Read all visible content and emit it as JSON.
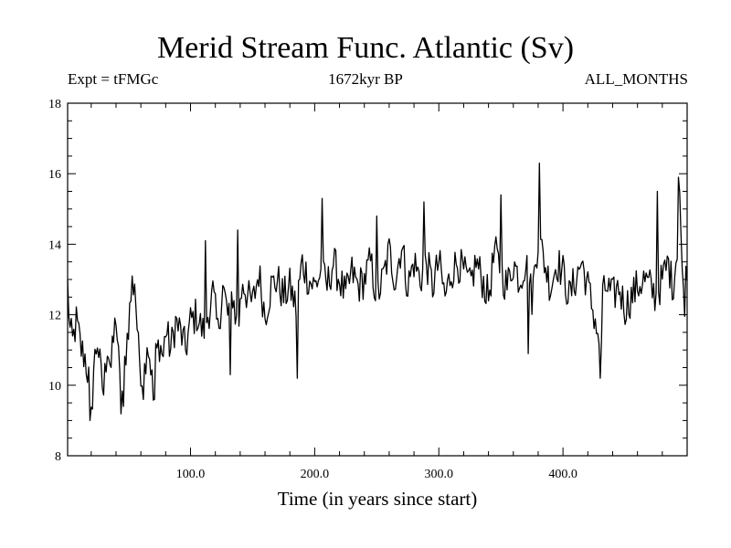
{
  "chart_data": {
    "type": "line",
    "title": "Merid Stream Func. Atlantic (Sv)",
    "subtitle_left": "Expt = tFMGc",
    "subtitle_center": "1672kyr BP",
    "subtitle_right": "ALL_MONTHS",
    "xlabel": "Time (in years since start)",
    "ylabel": "",
    "xlim": [
      1,
      500
    ],
    "ylim": [
      8,
      18
    ],
    "xticks": [
      100,
      200,
      300,
      400
    ],
    "xtick_labels": [
      "100.0",
      "200.0",
      "300.0",
      "400.0"
    ],
    "yticks": [
      8,
      10,
      12,
      14,
      16,
      18
    ],
    "ytick_labels": [
      "8",
      "10",
      "12",
      "14",
      "16",
      "18"
    ],
    "grid": false,
    "series": [
      {
        "name": "Merid Stream Func. Atlantic",
        "color": "#000000",
        "anchors_x": [
          1,
          3,
          5,
          8,
          12,
          15,
          18,
          20,
          22,
          25,
          28,
          30,
          33,
          36,
          40,
          44,
          48,
          52,
          55,
          58,
          62,
          65,
          68,
          70,
          72,
          75,
          78,
          80,
          84,
          88,
          92,
          96,
          100,
          105,
          110,
          114,
          118,
          122,
          126,
          130,
          134,
          138,
          142,
          146,
          150,
          155,
          160,
          165,
          170,
          175,
          180,
          185,
          190,
          195,
          200,
          205,
          210,
          215,
          220,
          225,
          230,
          235,
          240,
          245,
          250,
          255,
          260,
          265,
          270,
          275,
          280,
          285,
          290,
          295,
          300,
          305,
          310,
          315,
          320,
          325,
          330,
          335,
          340,
          345,
          350,
          355,
          360,
          365,
          370,
          375,
          380,
          385,
          390,
          395,
          400,
          405,
          410,
          415,
          420,
          425,
          428,
          430,
          432,
          435,
          440,
          445,
          450,
          455,
          460,
          465,
          470,
          475,
          480,
          485,
          488,
          490,
          492,
          494,
          496,
          498,
          500
        ],
        "anchors_y": [
          12.8,
          11.5,
          11.2,
          11.8,
          11.0,
          10.8,
          10.2,
          9.0,
          10.5,
          11.3,
          10.2,
          9.8,
          11.2,
          10.5,
          12.0,
          9.4,
          11.0,
          12.5,
          13.0,
          11.0,
          10.0,
          11.3,
          10.6,
          9.6,
          10.8,
          11.2,
          10.8,
          11.6,
          11.0,
          11.8,
          11.5,
          11.0,
          11.8,
          12.0,
          11.5,
          12.0,
          12.6,
          11.5,
          12.8,
          12.0,
          12.6,
          11.5,
          13.0,
          12.5,
          12.3,
          13.2,
          12.0,
          12.8,
          13.0,
          12.5,
          12.8,
          12.2,
          13.5,
          13.0,
          12.8,
          13.2,
          12.8,
          13.5,
          13.0,
          12.5,
          13.2,
          12.8,
          13.0,
          13.5,
          12.5,
          13.0,
          13.8,
          13.0,
          14.0,
          12.8,
          13.5,
          13.0,
          13.5,
          12.8,
          13.5,
          12.5,
          13.2,
          13.5,
          13.2,
          12.8,
          13.5,
          13.0,
          12.5,
          13.8,
          13.2,
          12.8,
          13.5,
          13.0,
          13.5,
          12.5,
          14.2,
          13.5,
          12.8,
          13.5,
          13.2,
          12.5,
          13.0,
          13.5,
          12.8,
          12.0,
          11.5,
          10.2,
          12.5,
          12.8,
          12.5,
          12.8,
          12.2,
          12.5,
          12.8,
          13.0,
          12.8,
          12.5,
          13.0,
          13.5,
          12.8,
          13.2,
          14.0,
          15.5,
          13.0,
          12.5,
          13.5
        ],
        "extrema": [
          {
            "x": 19,
            "y": 9.0
          },
          {
            "x": 46,
            "y": 9.4
          },
          {
            "x": 53,
            "y": 13.1
          },
          {
            "x": 71,
            "y": 9.6
          },
          {
            "x": 112,
            "y": 14.1
          },
          {
            "x": 132,
            "y": 10.3
          },
          {
            "x": 138,
            "y": 14.4
          },
          {
            "x": 186,
            "y": 10.2
          },
          {
            "x": 206,
            "y": 15.3
          },
          {
            "x": 250,
            "y": 14.8
          },
          {
            "x": 288,
            "y": 15.2
          },
          {
            "x": 350,
            "y": 15.4
          },
          {
            "x": 372,
            "y": 10.9
          },
          {
            "x": 381,
            "y": 16.3
          },
          {
            "x": 430,
            "y": 10.2
          },
          {
            "x": 476,
            "y": 15.5
          },
          {
            "x": 493,
            "y": 15.9
          }
        ],
        "noise_amplitude": 0.55,
        "n_points": 500
      }
    ]
  }
}
